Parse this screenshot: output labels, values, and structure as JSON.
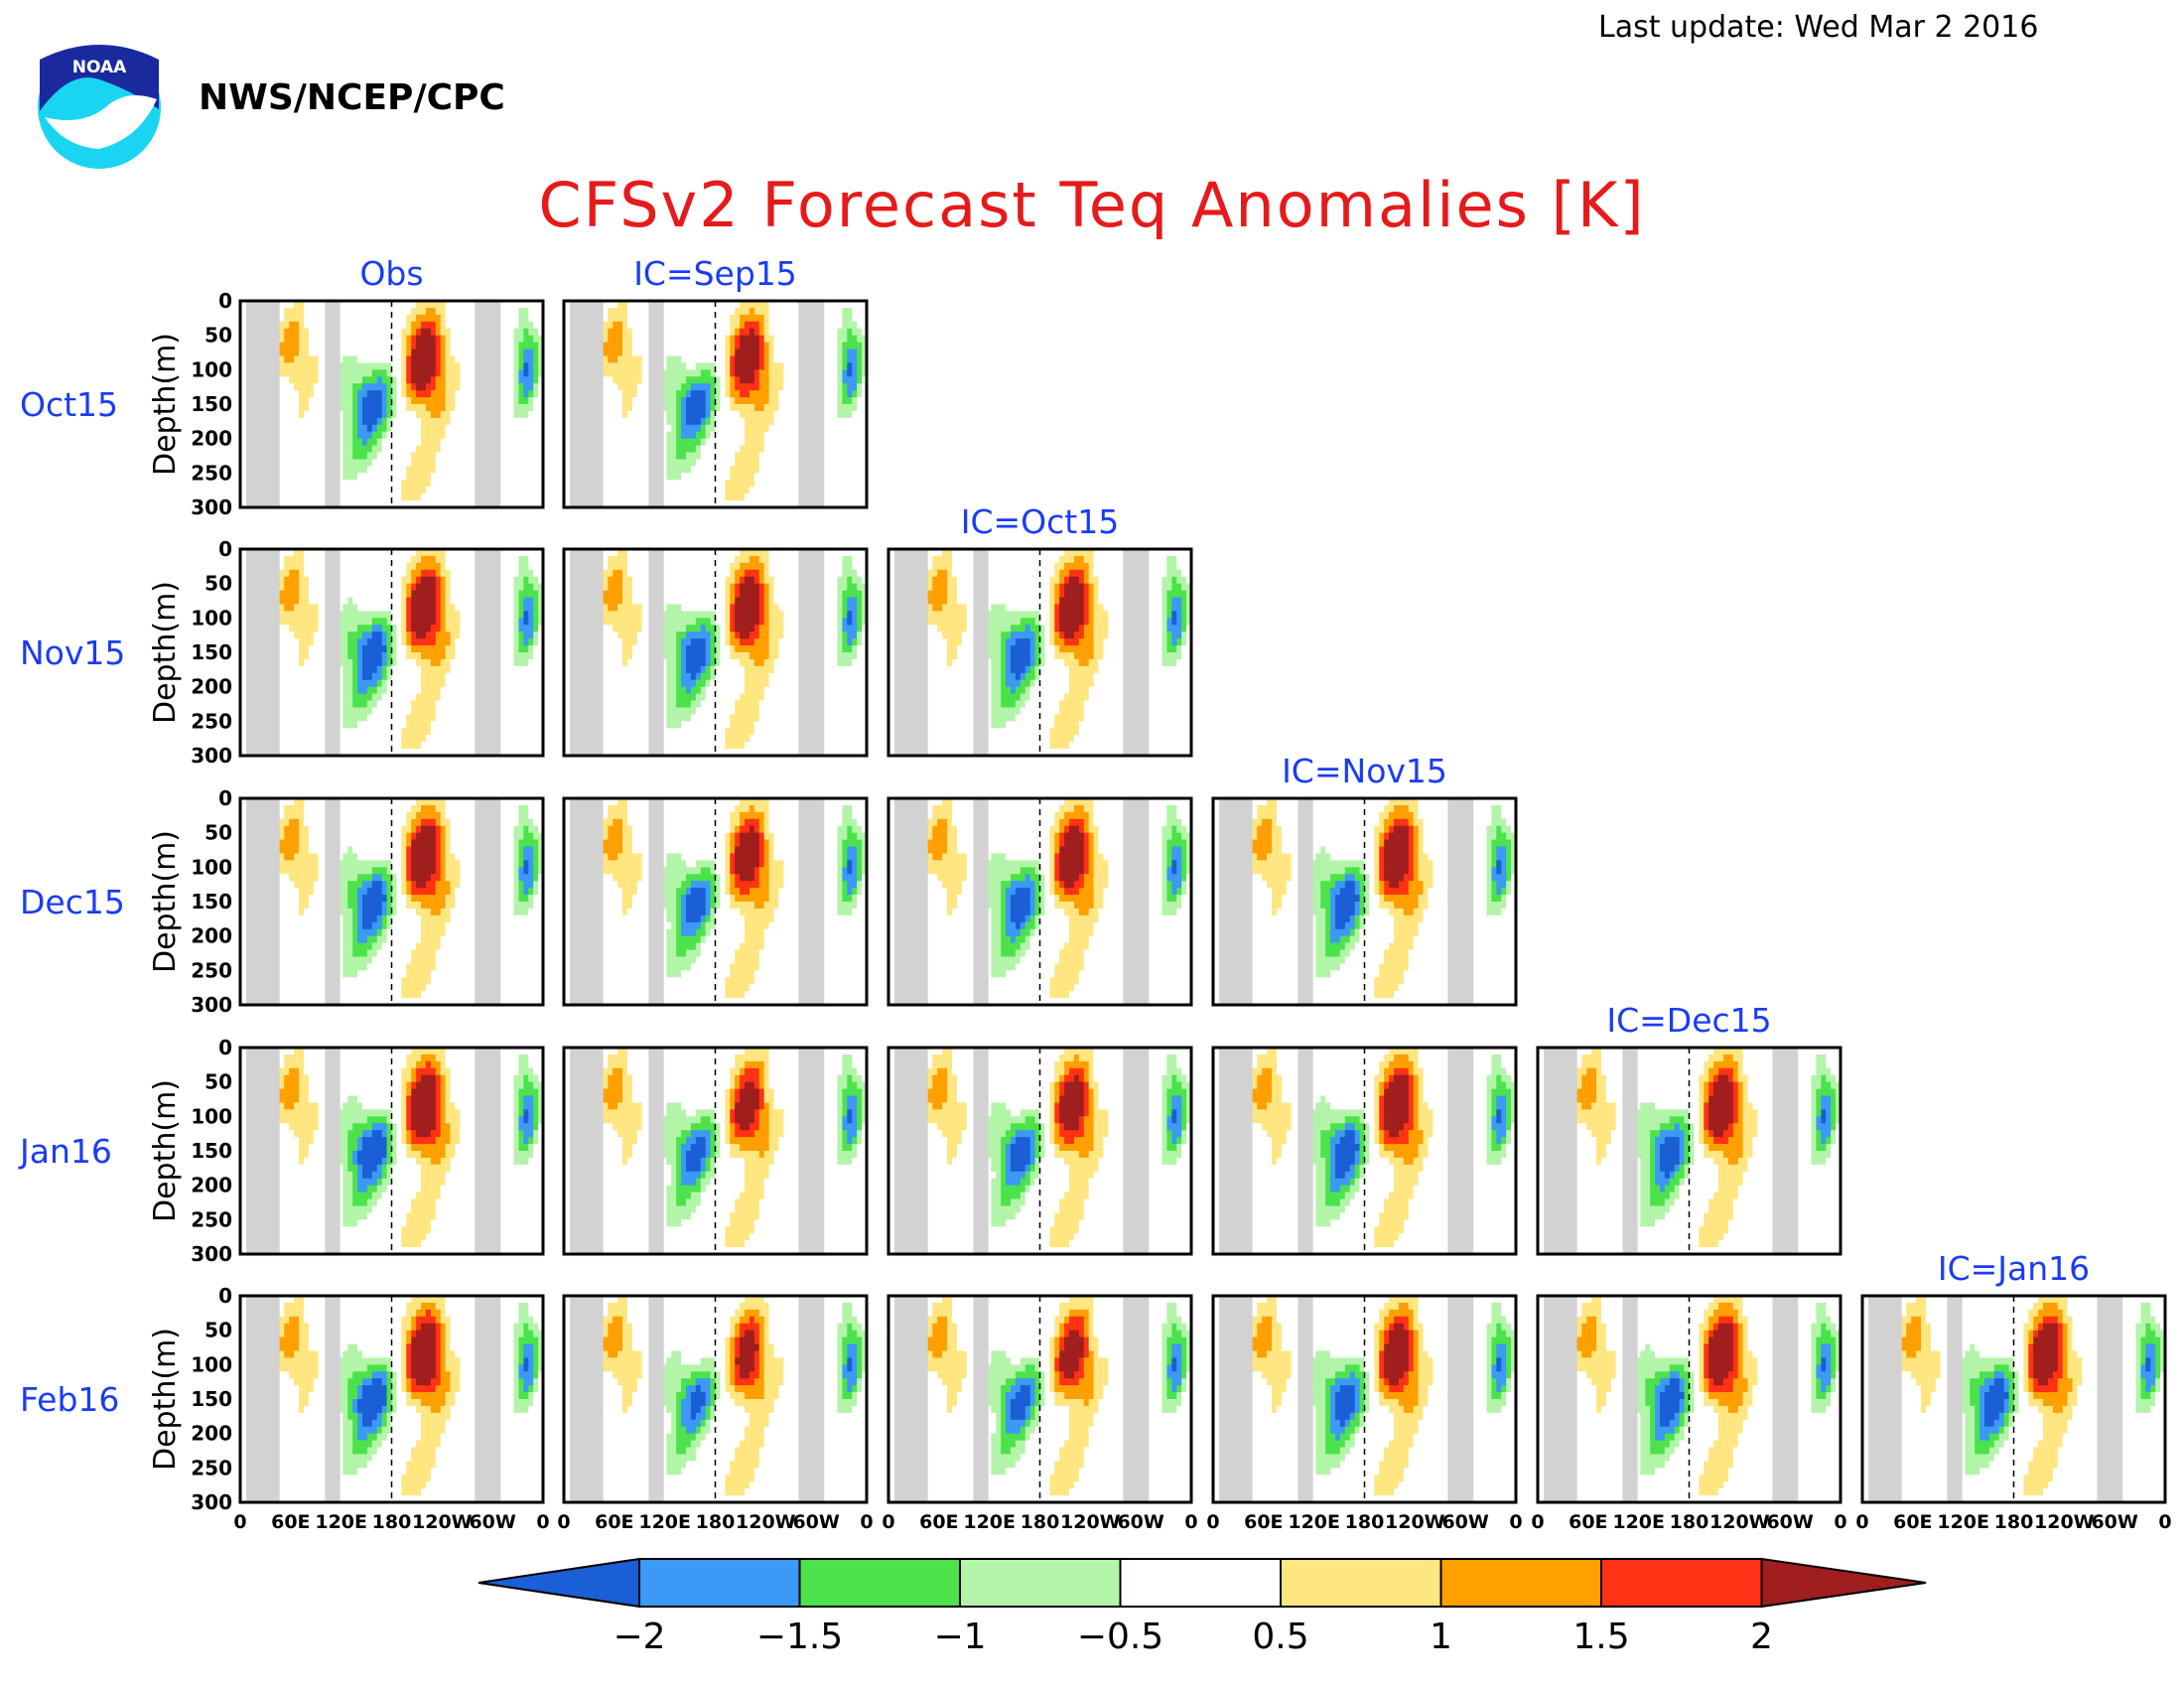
{
  "header": {
    "agency": "NWS/NCEP/CPC",
    "last_update": "Last update: Wed Mar 2 2016",
    "logo_text": "NOAA"
  },
  "chart_data": {
    "type": "heatmap",
    "title": "CFSv2 Forecast Teq Anomalies [K]",
    "ylabel": "Depth(m)",
    "y_ticks": [
      "0",
      "50",
      "100",
      "150",
      "200",
      "250",
      "300"
    ],
    "y_range": [
      0,
      300
    ],
    "x_ticks": [
      "0",
      "60E",
      "120E",
      "180",
      "120W",
      "60W",
      "0"
    ],
    "x_range_deg_east": [
      0,
      360
    ],
    "columns": [
      "Obs",
      "IC=Sep15",
      "IC=Oct15",
      "IC=Nov15",
      "IC=Dec15",
      "IC=Jan16"
    ],
    "rows": [
      "Oct15",
      "Nov15",
      "Dec15",
      "Jan16",
      "Feb16"
    ],
    "colorbar": {
      "levels": [
        "−2",
        "−1.5",
        "−1",
        "−0.5",
        "0.5",
        "1",
        "1.5",
        "2"
      ],
      "colors": [
        "#1a5fd6",
        "#3c99f5",
        "#4ce24c",
        "#b3f5a8",
        "#ffffff",
        "#ffe680",
        "#ffa000",
        "#ff3214",
        "#a01e1e"
      ],
      "extend": "both"
    },
    "land_color": "#d2d2d2",
    "panel_strength": [
      [
        1.0,
        0.95,
        null,
        null,
        null,
        null
      ],
      [
        1.05,
        1.0,
        1.0,
        null,
        null,
        null
      ],
      [
        1.05,
        0.95,
        1.0,
        1.05,
        null,
        null
      ],
      [
        1.1,
        0.9,
        0.95,
        1.05,
        1.0,
        null
      ],
      [
        1.1,
        0.85,
        0.9,
        1.0,
        1.05,
        1.05
      ]
    ]
  }
}
